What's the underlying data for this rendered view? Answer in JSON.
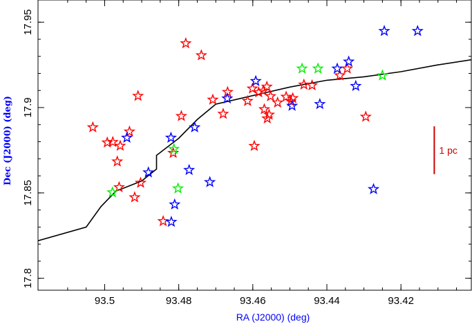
{
  "chart_data": {
    "type": "scatter",
    "title": "",
    "xlabel": "RA (J2000) (deg)",
    "ylabel": "Dec  (J2000)  (deg)",
    "xlim": [
      93.518,
      93.401
    ],
    "ylim": [
      17.793,
      17.963
    ],
    "x_reversed": true,
    "grid": false,
    "legend": "none",
    "x_ticks": [
      {
        "value": 93.5,
        "label": "93.5"
      },
      {
        "value": 93.48,
        "label": "93.48"
      },
      {
        "value": 93.46,
        "label": "93.46"
      },
      {
        "value": 93.44,
        "label": "93.44"
      },
      {
        "value": 93.42,
        "label": "93.42"
      }
    ],
    "y_ticks": [
      {
        "value": 17.8,
        "label": "17.8"
      },
      {
        "value": 17.85,
        "label": "17.85"
      },
      {
        "value": 17.9,
        "label": "17.9"
      },
      {
        "value": 17.95,
        "label": "17.95"
      }
    ],
    "curve": {
      "color": "#000000",
      "points": [
        [
          93.518,
          17.822
        ],
        [
          93.505,
          17.83
        ],
        [
          93.501,
          17.842
        ],
        [
          93.497,
          17.851
        ],
        [
          93.49,
          17.857
        ],
        [
          93.486,
          17.864
        ],
        [
          93.486,
          17.872
        ],
        [
          93.48,
          17.882
        ],
        [
          93.475,
          17.893
        ],
        [
          93.47,
          17.902
        ],
        [
          93.46,
          17.907
        ],
        [
          93.45,
          17.912
        ],
        [
          93.44,
          17.916
        ],
        [
          93.43,
          17.918
        ],
        [
          93.42,
          17.921
        ],
        [
          93.41,
          17.925
        ],
        [
          93.401,
          17.928
        ]
      ]
    },
    "series": [
      {
        "color": "#ff0000",
        "points": [
          [
            93.5032,
            17.8884
          ],
          [
            93.4993,
            17.8795
          ],
          [
            93.4978,
            17.8798
          ],
          [
            93.4958,
            17.8776
          ],
          [
            93.4966,
            17.8684
          ],
          [
            93.4933,
            17.8859
          ],
          [
            93.4919,
            17.8474
          ],
          [
            93.491,
            17.9068
          ],
          [
            93.4903,
            17.8559
          ],
          [
            93.4961,
            17.8533
          ],
          [
            93.4842,
            17.8334
          ],
          [
            93.4815,
            17.8734
          ],
          [
            93.4793,
            17.895
          ],
          [
            93.4781,
            17.9376
          ],
          [
            93.4739,
            17.9306
          ],
          [
            93.4708,
            17.9046
          ],
          [
            93.468,
            17.8963
          ],
          [
            93.4668,
            17.9091
          ],
          [
            93.4614,
            17.9038
          ],
          [
            93.4601,
            17.9111
          ],
          [
            93.4596,
            17.8775
          ],
          [
            93.4584,
            17.9089
          ],
          [
            93.4569,
            17.899
          ],
          [
            93.4572,
            17.9098
          ],
          [
            93.4562,
            17.9122
          ],
          [
            93.4561,
            17.8936
          ],
          [
            93.4556,
            17.8958
          ],
          [
            93.4552,
            17.9066
          ],
          [
            93.4533,
            17.9029
          ],
          [
            93.451,
            17.9063
          ],
          [
            93.4497,
            17.9036
          ],
          [
            93.4492,
            17.9055
          ],
          [
            93.4462,
            17.9134
          ],
          [
            93.444,
            17.913
          ],
          [
            93.4365,
            17.9188
          ],
          [
            93.4345,
            17.9228
          ],
          [
            93.4295,
            17.8946
          ]
        ]
      },
      {
        "color": "#0000ff",
        "points": [
          [
            93.494,
            17.8823
          ],
          [
            93.4882,
            17.862
          ],
          [
            93.4821,
            17.8823
          ],
          [
            93.482,
            17.833
          ],
          [
            93.4811,
            17.8432
          ],
          [
            93.4772,
            17.8634
          ],
          [
            93.4757,
            17.8884
          ],
          [
            93.4716,
            17.8563
          ],
          [
            93.4669,
            17.9053
          ],
          [
            93.4592,
            17.9155
          ],
          [
            93.4494,
            17.901
          ],
          [
            93.4419,
            17.902
          ],
          [
            93.4372,
            17.9228
          ],
          [
            93.4341,
            17.9269
          ],
          [
            93.4322,
            17.9126
          ],
          [
            93.4274,
            17.8522
          ],
          [
            93.4245,
            17.9448
          ],
          [
            93.4155,
            17.9448
          ]
        ]
      },
      {
        "color": "#00ee00",
        "points": [
          [
            93.4979,
            17.8503
          ],
          [
            93.4813,
            17.8757
          ],
          [
            93.4802,
            17.8526
          ],
          [
            93.4467,
            17.9228
          ],
          [
            93.4424,
            17.9228
          ],
          [
            93.425,
            17.9188
          ]
        ]
      }
    ],
    "scale_bar": {
      "label": "1 pc",
      "color": "#cc0000",
      "dec_from": 17.861,
      "dec_to": 17.889,
      "ra": 93.411
    }
  }
}
